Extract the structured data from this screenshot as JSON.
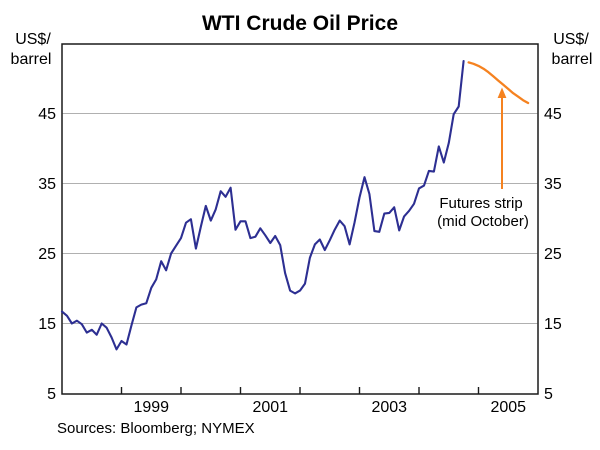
{
  "header": {
    "title": "WTI Crude Oil Price"
  },
  "axis_unit_labels": {
    "left_line1": "US$/",
    "left_line2": "barrel",
    "right_line1": "US$/",
    "right_line2": "barrel"
  },
  "annotation": {
    "line1": "Futures strip",
    "line2": "(mid October)"
  },
  "footer": {
    "sources": "Sources: Bloomberg; NYMEX"
  },
  "colors": {
    "history_line": "#2D2F92",
    "futures_line": "#F58220",
    "annotation_text": "#F58220",
    "gridline": "#B0B0B0",
    "frame": "#1A1A1A",
    "text": "#000000",
    "background": "#FFFFFF"
  },
  "chart_data": {
    "type": "line",
    "title": "WTI Crude Oil Price",
    "ylabel": "US$/barrel",
    "ylim": [
      5,
      55
    ],
    "yticks": [
      5,
      15,
      25,
      35,
      45
    ],
    "gridlines_at": [
      15,
      25,
      35,
      45
    ],
    "grid": "horizontal-only",
    "legend_position": "none",
    "x_domain_start": "1998-01",
    "x_domain_end": "2006-01",
    "x_tick_year_boundaries": [
      1999,
      2000,
      2001,
      2002,
      2003,
      2004,
      2005
    ],
    "x_label_years": [
      "1999",
      "2001",
      "2003",
      "2005"
    ],
    "series": [
      {
        "name": "WTI crude oil price (monthly, US$/barrel)",
        "color_key": "history_line",
        "start": "1998-01",
        "step_months": 1,
        "values": [
          16.7,
          16.1,
          15.0,
          15.4,
          14.9,
          13.7,
          14.1,
          13.4,
          15.0,
          14.4,
          13.0,
          11.3,
          12.5,
          12.0,
          14.7,
          17.3,
          17.7,
          17.9,
          20.1,
          21.3,
          23.9,
          22.6,
          25.0,
          26.1,
          27.2,
          29.4,
          29.9,
          25.7,
          28.8,
          31.8,
          29.7,
          31.3,
          33.9,
          33.1,
          34.4,
          28.4,
          29.6,
          29.6,
          27.2,
          27.4,
          28.6,
          27.6,
          26.5,
          27.5,
          26.2,
          22.2,
          19.7,
          19.3,
          19.7,
          20.7,
          24.4,
          26.3,
          27.0,
          25.5,
          26.9,
          28.4,
          29.7,
          28.9,
          26.3,
          29.4,
          33.0,
          35.9,
          33.5,
          28.2,
          28.1,
          30.7,
          30.8,
          31.6,
          28.3,
          30.3,
          31.1,
          32.1,
          34.3,
          34.7,
          36.8,
          36.7,
          40.3,
          38.0,
          40.8,
          44.9,
          46.0,
          52.5
        ]
      },
      {
        "name": "Futures strip (mid October)",
        "color_key": "futures_line",
        "start": "2004-11",
        "step_months": 1,
        "values": [
          52.3,
          52.1,
          51.8,
          51.4,
          50.9,
          50.3,
          49.7,
          49.1,
          48.5,
          47.9,
          47.4,
          46.9,
          46.5
        ]
      }
    ]
  }
}
